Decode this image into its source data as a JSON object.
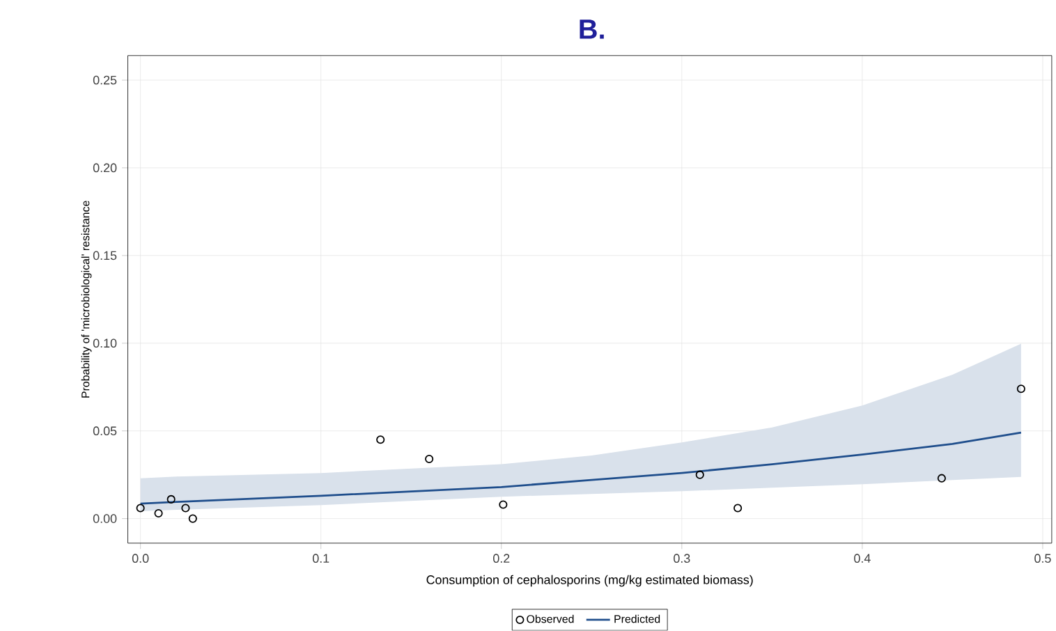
{
  "chart_data": {
    "type": "scatter",
    "title": "B.",
    "xlabel": "Consumption of cephalosporins (mg/kg estimated biomass)",
    "ylabel": "Probability of 'microbiological' resistance",
    "xlim": [
      -0.007,
      0.505
    ],
    "ylim": [
      -0.014,
      0.264
    ],
    "xticks": [
      {
        "value": 0,
        "label": "0.0"
      },
      0.1,
      0.2,
      0.3,
      0.4,
      0.5
    ],
    "yticks": [
      {
        "value": 0,
        "label": "0.00"
      },
      0.05,
      {
        "value": 0.1,
        "label": "0.10"
      },
      0.15,
      {
        "value": 0.2,
        "label": "0.20"
      },
      0.25
    ],
    "grid": true,
    "legend": "bottom",
    "series": [
      {
        "name": "Observed",
        "marker": "circle",
        "color": "#000000",
        "x": [
          0,
          0.01,
          0.017,
          0.025,
          0.029,
          0.133,
          0.16,
          0.201,
          0.31,
          0.331,
          0.444,
          0.488
        ],
        "values": [
          0.006,
          0.003,
          0.011,
          0.006,
          0.0,
          0.045,
          0.034,
          0.008,
          0.025,
          0.006,
          0.023,
          0.074
        ]
      },
      {
        "name": "Predicted",
        "type": "line",
        "line_style": "solid",
        "color": "#1f4e8c",
        "x": [
          0,
          0.02,
          0.1,
          0.2,
          0.25,
          0.3,
          0.35,
          0.4,
          0.45,
          0.488
        ],
        "values": [
          0.0085,
          0.0095,
          0.013,
          0.018,
          0.022,
          0.026,
          0.031,
          0.0365,
          0.0426,
          0.049
        ],
        "lower": [
          0.0042,
          0.005,
          0.0077,
          0.0125,
          0.014,
          0.0156,
          0.0176,
          0.0196,
          0.022,
          0.0238
        ],
        "upper": [
          0.023,
          0.024,
          0.026,
          0.031,
          0.036,
          0.0434,
          0.052,
          0.0645,
          0.082,
          0.0997
        ]
      }
    ]
  }
}
